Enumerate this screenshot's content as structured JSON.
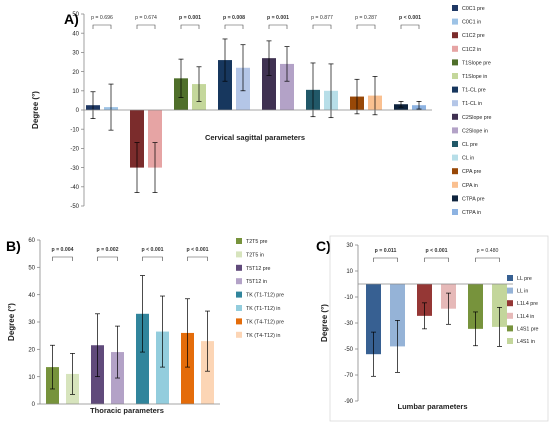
{
  "figure": {
    "panels": [
      "A)",
      "B)",
      "C)"
    ]
  },
  "chart_data": [
    {
      "panel": "A)",
      "type": "bar",
      "title": "",
      "xlabel": "Cervical sagittal parameters",
      "ylabel": "Degree (°)",
      "ylim": [
        -50,
        50
      ],
      "yticks": [
        50,
        40,
        30,
        20,
        10,
        0,
        -10,
        -20,
        -30,
        -40,
        -50
      ],
      "grid": false,
      "legend_position": "right",
      "series": [
        {
          "name": "C0C1 pre",
          "color": "#1f3864",
          "value": 2.5,
          "err": 7
        },
        {
          "name": "C0C1 in",
          "color": "#9dc3e6",
          "value": 1.5,
          "err": 12
        },
        {
          "name": "C1C2 pre",
          "color": "#7b2c2c",
          "value": -30,
          "err": 13
        },
        {
          "name": "C1C2 in",
          "color": "#e6a4a4",
          "value": -30,
          "err": 13
        },
        {
          "name": "T1Slope pre",
          "color": "#4f6f2a",
          "value": 16.5,
          "err": 10
        },
        {
          "name": "T1Slope in",
          "color": "#c4d79b",
          "value": 13.5,
          "err": 9
        },
        {
          "name": "T1-CL pre",
          "color": "#17375e",
          "value": 26,
          "err": 11
        },
        {
          "name": "T1-CL in",
          "color": "#b4c6e7",
          "value": 22,
          "err": 12
        },
        {
          "name": "C2Slope pre",
          "color": "#3f3151",
          "value": 27,
          "err": 9
        },
        {
          "name": "C2Slope in",
          "color": "#b3a2c7",
          "value": 24,
          "err": 9
        },
        {
          "name": "CL pre",
          "color": "#215868",
          "value": 10.5,
          "err": 14
        },
        {
          "name": "CL in",
          "color": "#b7dee8",
          "value": 10,
          "err": 14
        },
        {
          "name": "CPA pre",
          "color": "#984807",
          "value": 7,
          "err": 9
        },
        {
          "name": "CPA in",
          "color": "#fac090",
          "value": 7.5,
          "err": 10
        },
        {
          "name": "CTPA pre",
          "color": "#0f243e",
          "value": 3,
          "err": 1.5
        },
        {
          "name": "CTPA in",
          "color": "#8db3e2",
          "value": 2.5,
          "err": 2
        }
      ],
      "comparisons": [
        {
          "label": "p = 0.696",
          "bold": false,
          "bars": [
            0,
            1
          ]
        },
        {
          "label": "p = 0.674",
          "bold": false,
          "bars": [
            2,
            3
          ]
        },
        {
          "label": "p = 0.001",
          "bold": true,
          "bars": [
            4,
            5
          ]
        },
        {
          "label": "p = 0.008",
          "bold": true,
          "bars": [
            6,
            7
          ]
        },
        {
          "label": "p = 0.001",
          "bold": true,
          "bars": [
            8,
            9
          ]
        },
        {
          "label": "p = 0.877",
          "bold": false,
          "bars": [
            10,
            11
          ]
        },
        {
          "label": "p = 0.287",
          "bold": false,
          "bars": [
            12,
            13
          ]
        },
        {
          "label": "p < 0.001",
          "bold": true,
          "bars": [
            14,
            15
          ]
        }
      ]
    },
    {
      "panel": "B)",
      "type": "bar",
      "title": "",
      "xlabel": "Thoracic parameters",
      "ylabel": "Degree (°)",
      "ylim": [
        0,
        60
      ],
      "yticks": [
        60,
        50,
        40,
        30,
        20,
        10,
        0
      ],
      "grid": false,
      "legend_position": "right",
      "series": [
        {
          "name": "T2T5 pre",
          "color": "#77933c",
          "value": 13.5,
          "err": 8
        },
        {
          "name": "T2T5 in",
          "color": "#d7e4bd",
          "value": 11,
          "err": 7.5
        },
        {
          "name": "T5T12 pre",
          "color": "#604a7b",
          "value": 21.5,
          "err": 11.5
        },
        {
          "name": "T5T12 in",
          "color": "#b3a2c7",
          "value": 19,
          "err": 9.5
        },
        {
          "name": "TK (T1-T12) pre",
          "color": "#31859c",
          "value": 33,
          "err": 14
        },
        {
          "name": "TK (T1-T12) in",
          "color": "#93cddd",
          "value": 26.5,
          "err": 13
        },
        {
          "name": "TK (T4-T12) pre",
          "color": "#e46c0a",
          "value": 26,
          "err": 12.5
        },
        {
          "name": "TK (T4-T12) in",
          "color": "#fcd5b5",
          "value": 23,
          "err": 11
        }
      ],
      "comparisons": [
        {
          "label": "p = 0.004",
          "bold": true,
          "bars": [
            0,
            1
          ]
        },
        {
          "label": "p = 0.002",
          "bold": true,
          "bars": [
            2,
            3
          ]
        },
        {
          "label": "p < 0.001",
          "bold": true,
          "bars": [
            4,
            5
          ]
        },
        {
          "label": "p < 0.001",
          "bold": true,
          "bars": [
            6,
            7
          ]
        }
      ]
    },
    {
      "panel": "C)",
      "type": "bar",
      "title": "",
      "xlabel": "Lumbar parameters",
      "ylabel": "Degree (°)",
      "ylim": [
        -90,
        30
      ],
      "yticks": [
        30,
        10,
        -10,
        -30,
        -50,
        -70,
        -90
      ],
      "grid": false,
      "legend_position": "right",
      "series": [
        {
          "name": "LL pre",
          "color": "#376092",
          "value": -54,
          "err": 17
        },
        {
          "name": "LL in",
          "color": "#95b3d7",
          "value": -48,
          "err": 20
        },
        {
          "name": "L1L4 pre",
          "color": "#953735",
          "value": -24.5,
          "err": 10
        },
        {
          "name": "L1L4 in",
          "color": "#e6b9b8",
          "value": -19,
          "err": 12
        },
        {
          "name": "L4S1 pre",
          "color": "#77933c",
          "value": -34.5,
          "err": 13
        },
        {
          "name": "L4S1 in",
          "color": "#c3d69b",
          "value": -33,
          "err": 15
        }
      ],
      "comparisons": [
        {
          "label": "p = 0.011",
          "bold": true,
          "bars": [
            0,
            1
          ]
        },
        {
          "label": "p < 0.001",
          "bold": true,
          "bars": [
            2,
            3
          ]
        },
        {
          "label": "p = 0.480",
          "bold": false,
          "bars": [
            4,
            5
          ]
        }
      ]
    }
  ]
}
